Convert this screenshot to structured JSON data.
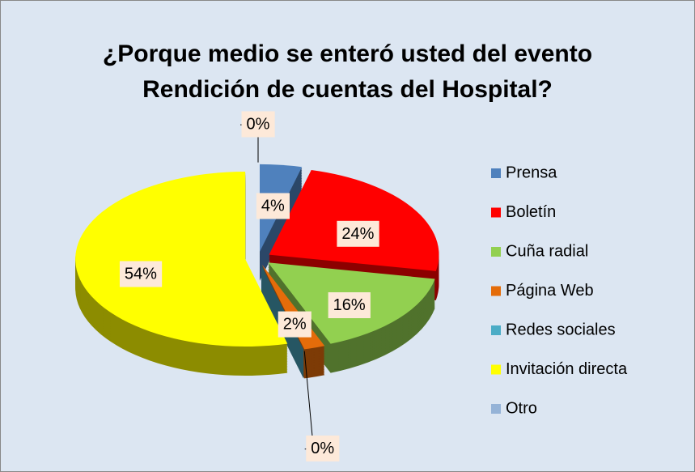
{
  "chart_data": {
    "type": "pie3d",
    "title": "¿Porque medio se enteró usted del evento Rendición de cuentas del Hospital?",
    "categories": [
      "Prensa",
      "Boletín",
      "Cuña radial",
      "Página Web",
      "Redes sociales",
      "Invitación directa",
      "Otro"
    ],
    "values": [
      4,
      24,
      16,
      2,
      0,
      54,
      0
    ],
    "value_labels": [
      "4%",
      "24%",
      "16%",
      "2%",
      "0%",
      "54%",
      "0%"
    ],
    "colors": [
      "#4f81bd",
      "#ff0000",
      "#92d050",
      "#e46c0a",
      "#4bacc6",
      "#ffff00",
      "#95b3d7"
    ],
    "legend": "right"
  }
}
